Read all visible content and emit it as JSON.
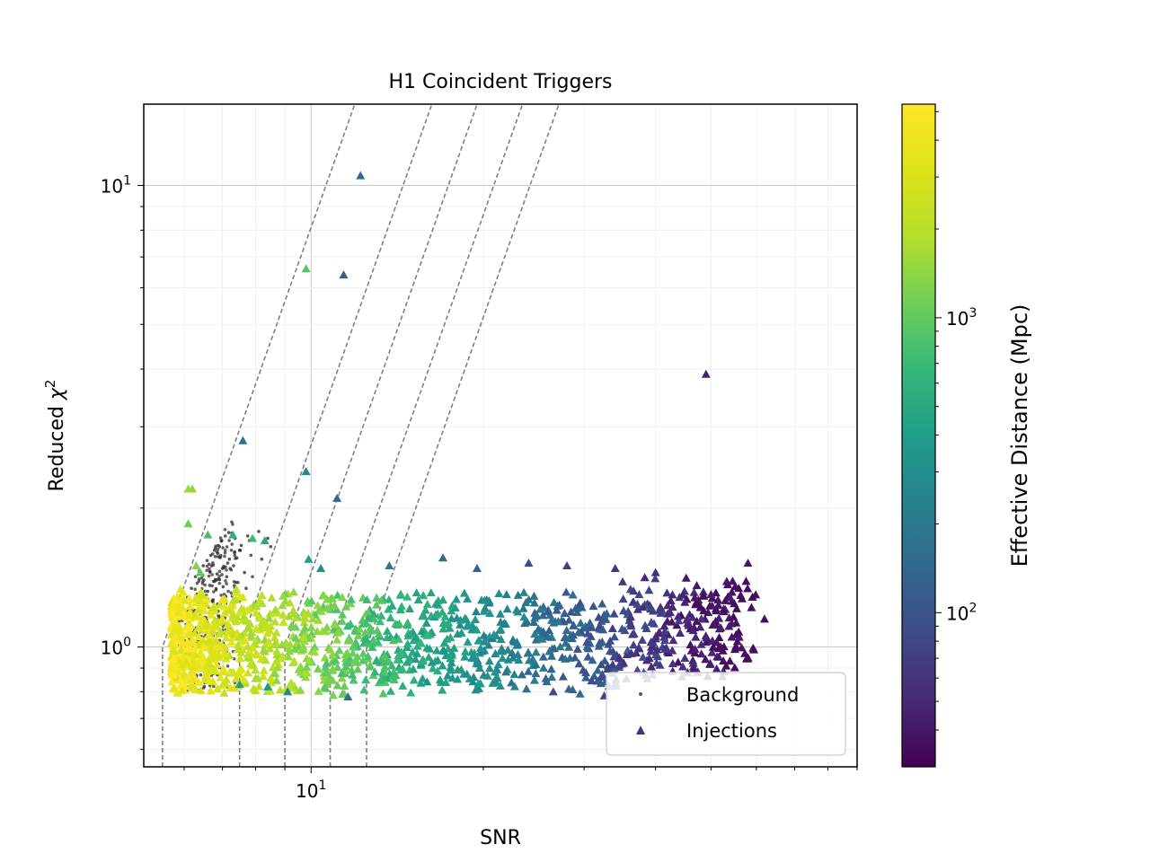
{
  "chart_data": {
    "type": "scatter",
    "title": "H1 Coincident Triggers",
    "xlabel": "SNR",
    "ylabel_main": "Reduced ",
    "ylabel_sym": "χ",
    "ylabel_sup": "2",
    "x_scale": "log",
    "y_scale": "log",
    "xlim": [
      5.1,
      90
    ],
    "ylim": [
      0.55,
      15
    ],
    "x_ticks": [
      {
        "value": 10,
        "base": "10",
        "exp": "1"
      }
    ],
    "y_ticks": [
      {
        "value": 1,
        "base": "10",
        "exp": "0"
      },
      {
        "value": 10,
        "base": "10",
        "exp": "1"
      }
    ],
    "grid": true,
    "legend_position": "lower right",
    "legend": [
      {
        "label": "Background",
        "marker": "dot",
        "color": "#555555"
      },
      {
        "label": "Injections",
        "marker": "triangle",
        "color": "#46327e"
      }
    ],
    "colorbar": {
      "label": "Effective Distance (Mpc)",
      "scale": "log",
      "range": [
        30,
        5300
      ],
      "colormap": "viridis",
      "ticks": [
        {
          "value": 100,
          "base": "10",
          "exp": "2"
        },
        {
          "value": 1000,
          "base": "10",
          "exp": "3"
        }
      ]
    },
    "threshold_curves": [
      {
        "snr_start": 5.5,
        "chisq_start": 1.0
      },
      {
        "snr_start": 7.5,
        "chisq_start": 1.0
      },
      {
        "snr_start": 9.0,
        "chisq_start": 1.0
      },
      {
        "snr_start": 10.8,
        "chisq_start": 1.0
      },
      {
        "snr_start": 12.5,
        "chisq_start": 1.0
      }
    ],
    "background": {
      "note_only_visible_scatter": "",
      "points": [
        [
          5.9,
          0.82
        ],
        [
          6.0,
          0.88
        ],
        [
          6.1,
          0.95
        ],
        [
          6.2,
          1.02
        ],
        [
          6.3,
          1.1
        ],
        [
          6.4,
          1.18
        ],
        [
          6.5,
          1.25
        ],
        [
          6.6,
          1.32
        ],
        [
          6.8,
          1.4
        ],
        [
          7.0,
          1.48
        ],
        [
          7.2,
          1.55
        ],
        [
          7.5,
          1.62
        ],
        [
          7.8,
          1.7
        ],
        [
          8.1,
          1.78
        ],
        [
          8.4,
          1.72
        ],
        [
          5.95,
          1.05
        ],
        [
          6.05,
          1.12
        ],
        [
          6.15,
          0.98
        ],
        [
          6.25,
          1.2
        ],
        [
          6.35,
          0.92
        ],
        [
          6.45,
          1.28
        ],
        [
          6.55,
          1.08
        ],
        [
          6.65,
          1.36
        ],
        [
          6.75,
          0.96
        ],
        [
          6.85,
          1.44
        ],
        [
          6.95,
          1.15
        ],
        [
          7.05,
          1.3
        ],
        [
          7.15,
          1.52
        ],
        [
          7.25,
          1.22
        ],
        [
          7.35,
          1.6
        ],
        [
          7.45,
          1.38
        ],
        [
          7.55,
          1.66
        ],
        [
          7.65,
          1.45
        ],
        [
          7.75,
          1.74
        ],
        [
          7.85,
          1.58
        ],
        [
          5.85,
          0.9
        ],
        [
          5.92,
          0.97
        ],
        [
          6.02,
          1.0
        ],
        [
          6.12,
          0.86
        ],
        [
          6.22,
          0.93
        ],
        [
          6.32,
          1.04
        ],
        [
          6.42,
          0.99
        ],
        [
          6.52,
          1.16
        ],
        [
          6.62,
          1.22
        ],
        [
          6.72,
          1.26
        ],
        [
          6.82,
          1.33
        ],
        [
          6.92,
          1.4
        ],
        [
          7.02,
          1.35
        ],
        [
          7.12,
          1.42
        ],
        [
          7.22,
          1.48
        ],
        [
          7.32,
          1.5
        ],
        [
          7.42,
          1.56
        ],
        [
          7.52,
          1.62
        ],
        [
          6.0,
          0.8
        ],
        [
          6.1,
          0.84
        ],
        [
          6.3,
          0.86
        ],
        [
          6.5,
          0.89
        ],
        [
          6.7,
          0.94
        ],
        [
          6.9,
          1.02
        ],
        [
          7.1,
          1.09
        ],
        [
          7.3,
          1.18
        ],
        [
          7.5,
          1.26
        ],
        [
          7.7,
          1.34
        ],
        [
          7.9,
          1.42
        ],
        [
          8.2,
          1.55
        ],
        [
          8.5,
          1.65
        ],
        [
          5.88,
          1.14
        ],
        [
          5.98,
          1.2
        ],
        [
          6.08,
          1.28
        ],
        [
          6.18,
          1.34
        ],
        [
          6.28,
          1.42
        ],
        [
          6.38,
          1.46
        ],
        [
          6.48,
          1.5
        ],
        [
          6.58,
          1.54
        ],
        [
          6.68,
          1.58
        ],
        [
          6.78,
          1.62
        ],
        [
          6.88,
          1.66
        ],
        [
          6.98,
          1.7
        ],
        [
          7.08,
          1.74
        ],
        [
          7.18,
          1.77
        ]
      ]
    },
    "injections": {
      "points": [
        [
          12.2,
          10.5,
          140
        ],
        [
          9.8,
          6.6,
          900
        ],
        [
          11.4,
          6.4,
          110
        ],
        [
          7.6,
          2.8,
          180
        ],
        [
          9.8,
          2.4,
          260
        ],
        [
          11.1,
          2.1,
          150
        ],
        [
          6.1,
          2.2,
          1600
        ],
        [
          6.2,
          2.2,
          1500
        ],
        [
          6.1,
          1.85,
          1100
        ],
        [
          6.6,
          1.75,
          800
        ],
        [
          7.3,
          1.75,
          600
        ],
        [
          7.9,
          1.72,
          700
        ],
        [
          8.3,
          1.7,
          500
        ],
        [
          6.3,
          1.5,
          1300
        ],
        [
          6.4,
          1.45,
          1000
        ],
        [
          9.9,
          1.55,
          400
        ],
        [
          10.4,
          1.48,
          300
        ],
        [
          13.7,
          1.5,
          200
        ],
        [
          17.0,
          1.56,
          150
        ],
        [
          19.5,
          1.48,
          120
        ],
        [
          24.0,
          1.52,
          90
        ],
        [
          28.0,
          1.5,
          70
        ],
        [
          34.0,
          1.48,
          60
        ],
        [
          40.0,
          1.45,
          55
        ],
        [
          58.0,
          1.52,
          40
        ],
        [
          62.0,
          1.15,
          35
        ],
        [
          49.0,
          3.9,
          45
        ],
        [
          26.5,
          0.8,
          85
        ],
        [
          11.6,
          0.78,
          160
        ],
        [
          9.1,
          0.8,
          260
        ],
        [
          7.5,
          0.83,
          420
        ],
        [
          8.4,
          0.82,
          380
        ],
        [
          45.0,
          1.25,
          45
        ],
        [
          50.0,
          1.3,
          45
        ],
        [
          54.0,
          1.28,
          42
        ],
        [
          56.0,
          1.05,
          40
        ],
        [
          47.0,
          1.05,
          48
        ],
        [
          52.0,
          1.1,
          45
        ],
        [
          42.0,
          1.18,
          52
        ],
        [
          38.0,
          1.22,
          55
        ],
        [
          5.7,
          1.02,
          4000
        ],
        [
          5.8,
          1.05,
          4500
        ],
        [
          5.75,
          0.98,
          3000
        ],
        [
          5.8,
          1.08,
          3500
        ]
      ],
      "cloud_note": ""
    }
  }
}
